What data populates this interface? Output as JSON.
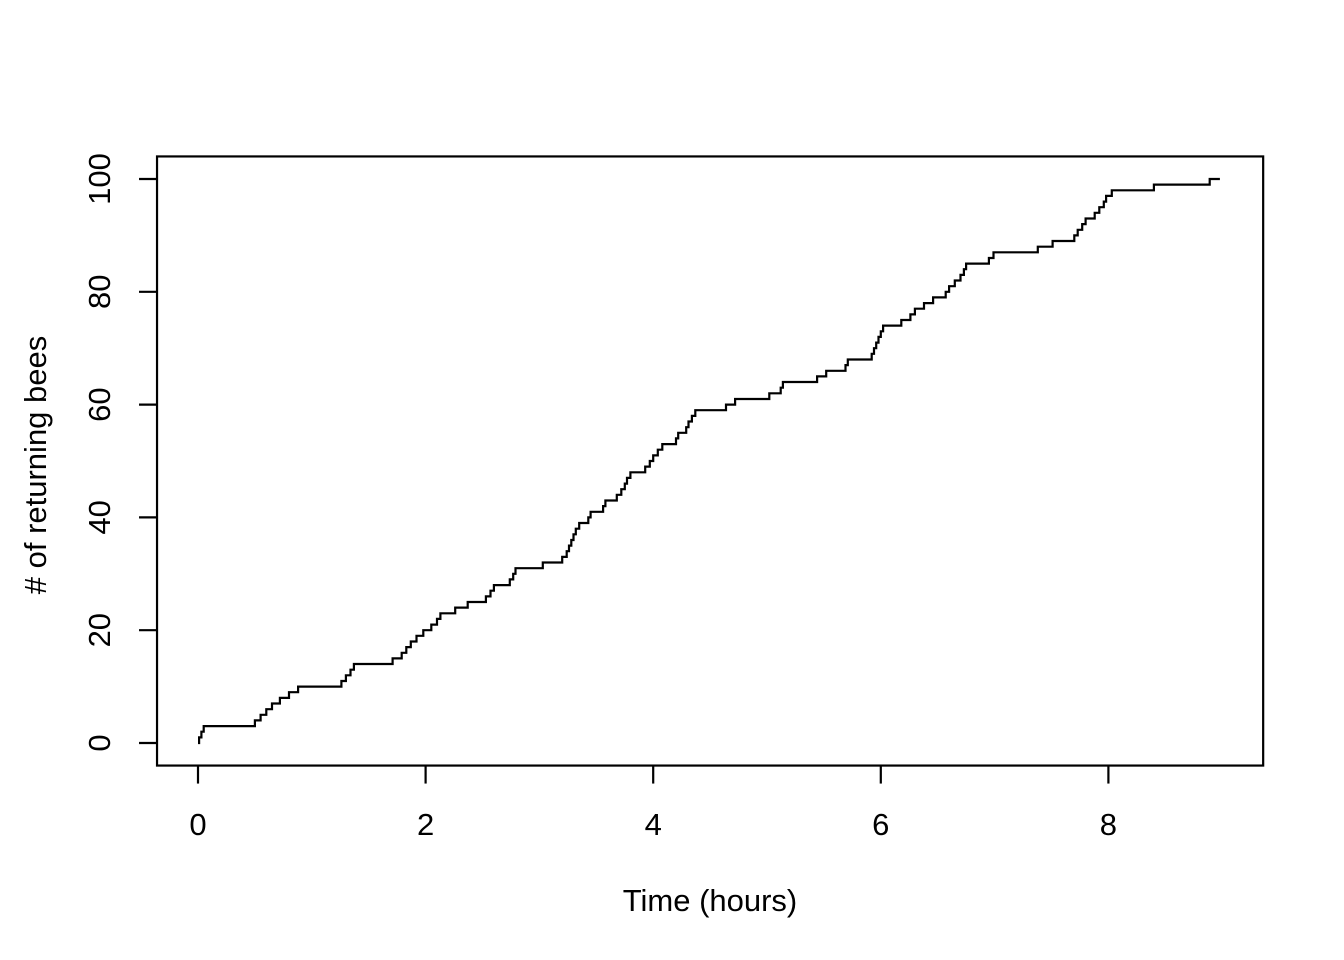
{
  "figure": {
    "background": "#ffffff",
    "line_color": "#000000"
  },
  "chart_data": {
    "type": "line",
    "subtype": "step-cumulative",
    "title": "",
    "xlabel": "Time (hours)",
    "ylabel": "# of returning bees",
    "x_ticks": [
      0,
      2,
      4,
      6,
      8
    ],
    "y_ticks": [
      0,
      20,
      40,
      60,
      80,
      100
    ],
    "xlim": [
      -0.36,
      9.36
    ],
    "ylim": [
      -4,
      104
    ],
    "grid": false,
    "legend": "none",
    "start_point": {
      "t": 0,
      "count": 0
    },
    "end_time": 8.98,
    "final_count": 100,
    "event_times": [
      0.01,
      0.03,
      0.05,
      0.5,
      0.55,
      0.6,
      0.65,
      0.72,
      0.8,
      0.88,
      1.26,
      1.3,
      1.34,
      1.37,
      1.71,
      1.79,
      1.83,
      1.87,
      1.92,
      1.98,
      2.05,
      2.1,
      2.13,
      2.26,
      2.37,
      2.53,
      2.57,
      2.6,
      2.74,
      2.77,
      2.79,
      3.03,
      3.2,
      3.24,
      3.26,
      3.28,
      3.3,
      3.32,
      3.35,
      3.43,
      3.45,
      3.56,
      3.58,
      3.68,
      3.72,
      3.75,
      3.77,
      3.8,
      3.93,
      3.97,
      4.0,
      4.04,
      4.08,
      4.2,
      4.22,
      4.29,
      4.31,
      4.34,
      4.37,
      4.64,
      4.72,
      5.02,
      5.12,
      5.14,
      5.44,
      5.52,
      5.69,
      5.71,
      5.92,
      5.94,
      5.96,
      5.98,
      6.0,
      6.02,
      6.18,
      6.26,
      6.3,
      6.38,
      6.46,
      6.57,
      6.6,
      6.65,
      6.7,
      6.73,
      6.75,
      6.95,
      6.99,
      7.38,
      7.51,
      7.7,
      7.73,
      7.77,
      7.8,
      7.88,
      7.92,
      7.96,
      7.98,
      8.03,
      8.4,
      8.89
    ],
    "note": "event_times[i] is the time (hours) at which cumulative count reaches i+1"
  }
}
